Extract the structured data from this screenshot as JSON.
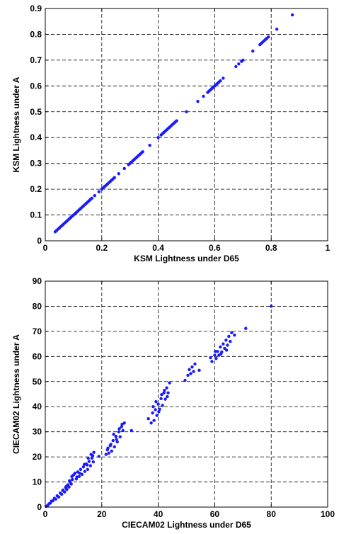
{
  "chart_data": [
    {
      "type": "scatter",
      "title": "",
      "xlabel": "KSM Lightness under D65",
      "ylabel": "KSM Lightness under A",
      "xlim": [
        0,
        1
      ],
      "ylim": [
        0,
        0.9
      ],
      "x_ticks": [
        0,
        0.2,
        0.4,
        0.6,
        0.8,
        1
      ],
      "x_tick_labels": [
        "0",
        "0.2",
        "0.4",
        "0.6",
        "0.8",
        "1"
      ],
      "y_ticks": [
        0,
        0.1,
        0.2,
        0.3,
        0.4,
        0.5,
        0.6,
        0.7,
        0.8,
        0.9
      ],
      "y_tick_labels": [
        "0",
        "0.1",
        "0.2",
        "0.3",
        "0.4",
        "0.5",
        "0.6",
        "0.7",
        "0.8",
        "0.9"
      ],
      "grid": true,
      "marker_color": "#1a1aff",
      "series": [
        {
          "x": [
            0.035,
            0.04,
            0.045,
            0.05,
            0.055,
            0.06,
            0.065,
            0.07,
            0.075,
            0.08,
            0.085,
            0.09,
            0.095,
            0.1,
            0.105,
            0.11,
            0.115,
            0.12,
            0.125,
            0.13,
            0.135,
            0.14,
            0.145,
            0.15,
            0.155,
            0.16,
            0.165,
            0.175,
            0.19,
            0.2,
            0.205,
            0.21,
            0.215,
            0.22,
            0.225,
            0.23,
            0.235,
            0.24,
            0.245,
            0.26,
            0.28,
            0.295,
            0.3,
            0.305,
            0.31,
            0.315,
            0.32,
            0.325,
            0.33,
            0.335,
            0.34,
            0.345,
            0.37,
            0.4,
            0.41,
            0.415,
            0.42,
            0.425,
            0.43,
            0.435,
            0.44,
            0.445,
            0.45,
            0.455,
            0.46,
            0.465,
            0.5,
            0.54,
            0.56,
            0.575,
            0.58,
            0.585,
            0.59,
            0.595,
            0.6,
            0.605,
            0.61,
            0.615,
            0.62,
            0.63,
            0.675,
            0.685,
            0.695,
            0.7,
            0.735,
            0.76,
            0.765,
            0.77,
            0.775,
            0.78,
            0.785,
            0.79,
            0.82,
            0.875
          ],
          "y": [
            0.035,
            0.04,
            0.045,
            0.05,
            0.055,
            0.06,
            0.065,
            0.07,
            0.075,
            0.08,
            0.085,
            0.09,
            0.095,
            0.1,
            0.105,
            0.11,
            0.115,
            0.12,
            0.125,
            0.13,
            0.135,
            0.14,
            0.145,
            0.15,
            0.155,
            0.16,
            0.165,
            0.175,
            0.19,
            0.2,
            0.205,
            0.21,
            0.215,
            0.22,
            0.225,
            0.23,
            0.235,
            0.24,
            0.245,
            0.26,
            0.28,
            0.295,
            0.3,
            0.305,
            0.31,
            0.315,
            0.32,
            0.325,
            0.33,
            0.335,
            0.34,
            0.345,
            0.37,
            0.4,
            0.41,
            0.415,
            0.42,
            0.425,
            0.43,
            0.435,
            0.44,
            0.445,
            0.45,
            0.455,
            0.46,
            0.465,
            0.5,
            0.54,
            0.56,
            0.575,
            0.58,
            0.585,
            0.59,
            0.595,
            0.6,
            0.605,
            0.61,
            0.615,
            0.62,
            0.63,
            0.675,
            0.685,
            0.695,
            0.7,
            0.735,
            0.76,
            0.765,
            0.77,
            0.775,
            0.78,
            0.785,
            0.79,
            0.82,
            0.875
          ]
        }
      ]
    },
    {
      "type": "scatter",
      "title": "",
      "xlabel": "CIECAM02 Lightness under D65",
      "ylabel": "CIECAM02 Lightness under A",
      "xlim": [
        0,
        100
      ],
      "ylim": [
        0,
        90
      ],
      "x_ticks": [
        0,
        20,
        40,
        60,
        80,
        100
      ],
      "x_tick_labels": [
        "0",
        "20",
        "40",
        "60",
        "80",
        "100"
      ],
      "y_ticks": [
        0,
        10,
        20,
        30,
        40,
        50,
        60,
        70,
        80,
        90
      ],
      "y_tick_labels": [
        "0",
        "10",
        "20",
        "30",
        "40",
        "50",
        "60",
        "70",
        "80",
        "90"
      ],
      "grid": true,
      "marker_color": "#1a1aff",
      "series": [
        {
          "x": [
            0.3,
            0.8,
            1.3,
            1.8,
            2.2,
            2.7,
            3.2,
            3.7,
            4.2,
            4.8,
            5.3,
            5.8,
            6.3,
            6.8,
            7.2,
            7.6,
            8.0,
            8.4,
            8.8,
            9.2,
            9.6,
            10.0,
            9.4,
            8.6,
            7.4,
            6.2,
            10.5,
            11.0,
            11.5,
            12.0,
            12.5,
            13.0,
            13.5,
            14.0,
            14.5,
            15.0,
            15.5,
            16.0,
            16.5,
            17.0,
            17.2,
            16.8,
            15.2,
            13.8,
            12.2,
            11.2,
            14.8,
            16.2,
            19.0,
            21.5,
            22.0,
            22.5,
            23.0,
            23.5,
            24.0,
            24.5,
            25.0,
            25.5,
            26.0,
            26.5,
            27.0,
            27.5,
            28.0,
            26.2,
            24.2,
            23.2,
            22.2,
            25.2,
            27.2,
            30.5,
            36.5,
            37.5,
            38.0,
            38.5,
            39.0,
            39.5,
            40.0,
            40.5,
            41.0,
            41.5,
            42.0,
            42.5,
            43.0,
            43.5,
            44.0,
            41.2,
            39.2,
            40.2,
            42.2,
            38.2,
            43.2,
            49.5,
            50.5,
            51.0,
            51.5,
            52.0,
            52.5,
            53.0,
            54.5,
            58.5,
            59.0,
            60.0,
            60.5,
            61.0,
            61.5,
            62.0,
            62.5,
            63.0,
            63.5,
            64.0,
            64.5,
            65.0,
            65.5,
            66.0,
            62.2,
            64.2,
            60.2,
            67.0,
            71.0,
            80.0
          ],
          "y": [
            0.3,
            0.6,
            1.3,
            1.6,
            2.4,
            2.5,
            3.5,
            3.2,
            4.5,
            4.0,
            5.6,
            5.1,
            6.8,
            6.0,
            7.8,
            7.0,
            8.9,
            8.0,
            10.0,
            9.2,
            11.0,
            12.8,
            12.2,
            10.5,
            8.2,
            6.6,
            13.5,
            11.2,
            14.0,
            12.2,
            15.0,
            13.0,
            16.0,
            14.2,
            17.2,
            15.0,
            18.2,
            16.5,
            19.5,
            18.0,
            21.8,
            20.5,
            19.5,
            17.0,
            13.5,
            12.0,
            16.8,
            21.0,
            20.2,
            21.0,
            22.8,
            21.5,
            24.5,
            22.3,
            26.5,
            24.0,
            28.2,
            26.0,
            30.0,
            28.0,
            32.0,
            30.5,
            33.5,
            31.2,
            29.0,
            25.0,
            23.5,
            27.0,
            33.0,
            30.5,
            35.2,
            33.5,
            37.5,
            34.5,
            38.8,
            36.5,
            41.0,
            39.0,
            43.2,
            40.5,
            45.5,
            43.0,
            47.5,
            45.5,
            49.5,
            44.8,
            42.0,
            38.0,
            46.5,
            40.0,
            44.0,
            50.5,
            52.5,
            54.8,
            53.2,
            55.8,
            54.0,
            57.0,
            54.5,
            59.5,
            58.0,
            60.5,
            59.2,
            62.0,
            60.5,
            63.8,
            61.8,
            65.0,
            63.2,
            66.5,
            64.5,
            68.0,
            66.0,
            69.5,
            61.0,
            62.5,
            62.0,
            68.5,
            71.2,
            80.0
          ]
        }
      ]
    }
  ]
}
